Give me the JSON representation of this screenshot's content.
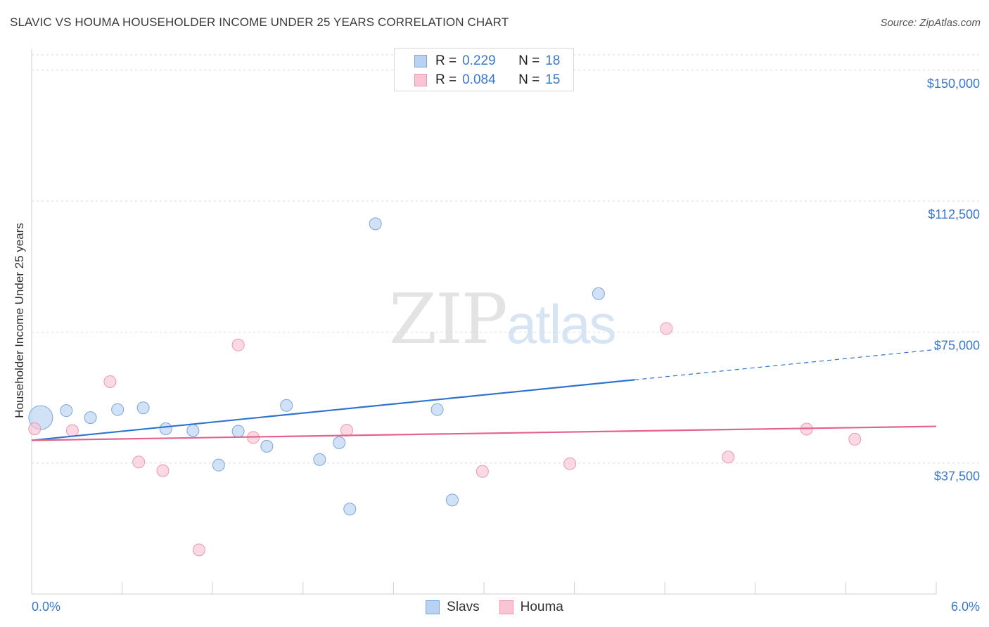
{
  "title": "SLAVIC VS HOUMA HOUSEHOLDER INCOME UNDER 25 YEARS CORRELATION CHART",
  "source": "Source: ZipAtlas.com",
  "watermark": {
    "zip": "ZIP",
    "atlas": "atlas"
  },
  "legend_top": [
    {
      "r_label": "R =",
      "r_value": "0.229",
      "n_label": "N =",
      "n_value": "18"
    },
    {
      "r_label": "R =",
      "r_value": "0.084",
      "n_label": "N =",
      "n_value": "15"
    }
  ],
  "colors": {
    "slavs_fill": "#b9d2f3",
    "slavs_stroke": "#7aa6de",
    "slavs_line": "#2f73d0",
    "houma_fill": "#f9c4d4",
    "houma_stroke": "#ec97b2",
    "houma_line": "#e3638d",
    "grid": "#d9d9d9",
    "tick_text": "#3a78c9"
  },
  "chart_data": {
    "type": "scatter",
    "title": "SLAVIC VS HOUMA HOUSEHOLDER INCOME UNDER 25 YEARS CORRELATION CHART",
    "xlabel": "",
    "ylabel": "Householder Income Under 25 years",
    "xlim": [
      0,
      6
    ],
    "ylim": [
      0,
      156000
    ],
    "x_tick_labels": [
      "0.0%",
      "6.0%"
    ],
    "y_ticks": [
      37500,
      75000,
      112500,
      150000
    ],
    "y_tick_labels": [
      "$37,500",
      "$75,000",
      "$112,500",
      "$150,000"
    ],
    "legend_position": "bottom",
    "series": [
      {
        "name": "Slavs",
        "r": 0.229,
        "n": 18,
        "points": [
          {
            "x": 0.06,
            "y": 50500,
            "size": "large"
          },
          {
            "x": 0.23,
            "y": 52500
          },
          {
            "x": 0.39,
            "y": 50500
          },
          {
            "x": 0.57,
            "y": 52800
          },
          {
            "x": 0.74,
            "y": 53300
          },
          {
            "x": 0.89,
            "y": 47300
          },
          {
            "x": 1.07,
            "y": 46800
          },
          {
            "x": 1.24,
            "y": 36900
          },
          {
            "x": 1.37,
            "y": 46600
          },
          {
            "x": 1.56,
            "y": 42300
          },
          {
            "x": 1.69,
            "y": 54000
          },
          {
            "x": 1.91,
            "y": 38500
          },
          {
            "x": 2.04,
            "y": 43300
          },
          {
            "x": 2.11,
            "y": 24300
          },
          {
            "x": 2.28,
            "y": 106000
          },
          {
            "x": 2.69,
            "y": 52800
          },
          {
            "x": 2.79,
            "y": 26900
          },
          {
            "x": 3.76,
            "y": 86000
          }
        ],
        "trend": {
          "x0": 0,
          "y0": 44000,
          "x_solid_end": 4.0,
          "x1": 6,
          "y1": 70000
        }
      },
      {
        "name": "Houma",
        "r": 0.084,
        "n": 15,
        "points": [
          {
            "x": 0.02,
            "y": 47300
          },
          {
            "x": 0.27,
            "y": 46800
          },
          {
            "x": 0.52,
            "y": 60800
          },
          {
            "x": 0.71,
            "y": 37800
          },
          {
            "x": 0.87,
            "y": 35300
          },
          {
            "x": 1.11,
            "y": 12600
          },
          {
            "x": 1.37,
            "y": 71300
          },
          {
            "x": 1.47,
            "y": 44800
          },
          {
            "x": 2.09,
            "y": 46900
          },
          {
            "x": 2.99,
            "y": 35100
          },
          {
            "x": 3.57,
            "y": 37300
          },
          {
            "x": 4.21,
            "y": 76000
          },
          {
            "x": 4.62,
            "y": 39200
          },
          {
            "x": 5.14,
            "y": 47200
          },
          {
            "x": 5.46,
            "y": 44300
          }
        ],
        "trend": {
          "x0": 0,
          "y0": 44000,
          "x1": 6,
          "y1": 48000
        }
      }
    ]
  }
}
